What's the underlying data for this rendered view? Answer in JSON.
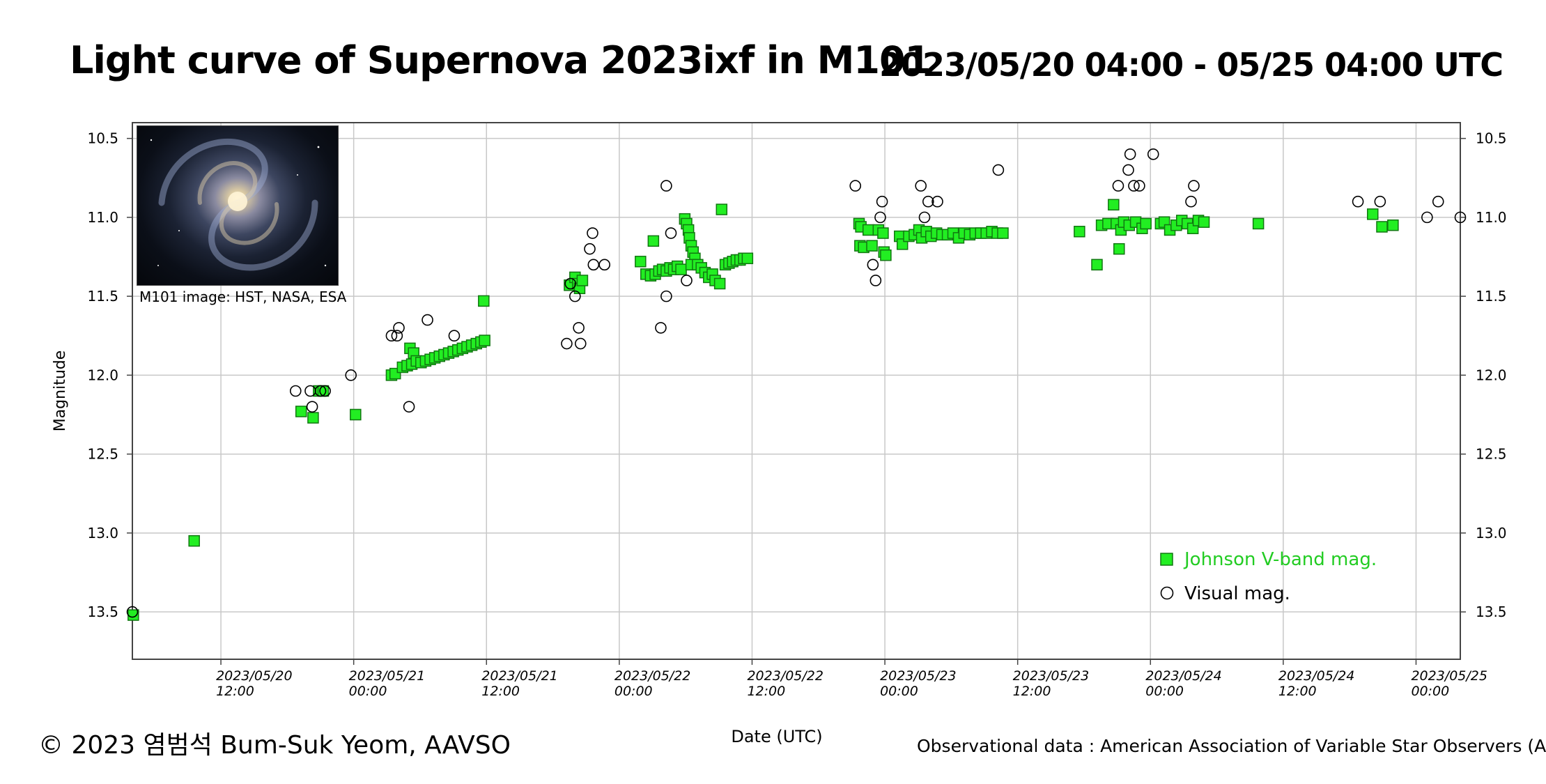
{
  "header": {
    "title": "Light curve of Supernova 2023ixf in M101",
    "range": "2023/05/20 04:00 - 05/25 04:00 UTC"
  },
  "inset": {
    "caption": "M101 image: HST, NASA, ESA"
  },
  "footer": {
    "copyright": "© 2023 염범석 Bum-Suk Yeom, AAVSO",
    "source": "Observational data : American Association of Variable Star Observers (AAVSO)"
  },
  "colors": {
    "vband": "#22ee22",
    "vband_edge": "#117711",
    "visual": "#000000",
    "legend_vband_text": "#22cc22"
  },
  "chart_data": {
    "type": "scatter",
    "xlabel": "Date (UTC)",
    "ylabel": "Magnitude",
    "xlim": [
      "2023-05-20T04:00",
      "2023-05-25T04:00"
    ],
    "ylim": [
      13.8,
      10.4
    ],
    "y_inverted": true,
    "grid": true,
    "legend_position": "bottom-right",
    "yticks": [
      "10.5",
      "11.0",
      "11.5",
      "12.0",
      "12.5",
      "13.0",
      "13.5"
    ],
    "xticks": [
      {
        "date": "2023-05-20T12:00",
        "line1": "2023/05/20",
        "line2": "12:00"
      },
      {
        "date": "2023-05-21T00:00",
        "line1": "2023/05/21",
        "line2": "00:00"
      },
      {
        "date": "2023-05-21T12:00",
        "line1": "2023/05/21",
        "line2": "12:00"
      },
      {
        "date": "2023-05-22T00:00",
        "line1": "2023/05/22",
        "line2": "00:00"
      },
      {
        "date": "2023-05-22T12:00",
        "line1": "2023/05/22",
        "line2": "12:00"
      },
      {
        "date": "2023-05-23T00:00",
        "line1": "2023/05/23",
        "line2": "00:00"
      },
      {
        "date": "2023-05-23T12:00",
        "line1": "2023/05/23",
        "line2": "12:00"
      },
      {
        "date": "2023-05-24T00:00",
        "line1": "2023/05/24",
        "line2": "00:00"
      },
      {
        "date": "2023-05-24T12:00",
        "line1": "2023/05/24",
        "line2": "12:00"
      },
      {
        "date": "2023-05-25T00:00",
        "line1": "2023/05/25",
        "line2": "00:00"
      }
    ],
    "series": [
      {
        "name": "Johnson V-band mag.",
        "marker": "square",
        "points": [
          [
            "2023-05-20T04:05",
            13.52
          ],
          [
            "2023-05-20T09:35",
            13.05
          ],
          [
            "2023-05-20T19:15",
            12.23
          ],
          [
            "2023-05-20T20:20",
            12.27
          ],
          [
            "2023-05-20T20:50",
            12.1
          ],
          [
            "2023-05-20T21:15",
            12.1
          ],
          [
            "2023-05-21T00:10",
            12.25
          ],
          [
            "2023-05-21T03:25",
            12.0
          ],
          [
            "2023-05-21T03:45",
            11.99
          ],
          [
            "2023-05-21T04:25",
            11.95
          ],
          [
            "2023-05-21T04:50",
            11.94
          ],
          [
            "2023-05-21T05:15",
            11.93
          ],
          [
            "2023-05-21T05:05",
            11.83
          ],
          [
            "2023-05-21T05:25",
            11.86
          ],
          [
            "2023-05-21T05:40",
            11.91
          ],
          [
            "2023-05-21T06:05",
            11.92
          ],
          [
            "2023-05-21T06:30",
            11.91
          ],
          [
            "2023-05-21T06:55",
            11.9
          ],
          [
            "2023-05-21T07:20",
            11.89
          ],
          [
            "2023-05-21T07:45",
            11.88
          ],
          [
            "2023-05-21T08:10",
            11.87
          ],
          [
            "2023-05-21T08:35",
            11.86
          ],
          [
            "2023-05-21T09:00",
            11.85
          ],
          [
            "2023-05-21T09:25",
            11.84
          ],
          [
            "2023-05-21T09:50",
            11.83
          ],
          [
            "2023-05-21T10:15",
            11.82
          ],
          [
            "2023-05-21T10:40",
            11.81
          ],
          [
            "2023-05-21T11:05",
            11.8
          ],
          [
            "2023-05-21T11:30",
            11.79
          ],
          [
            "2023-05-21T11:50",
            11.78
          ],
          [
            "2023-05-21T11:45",
            11.53
          ],
          [
            "2023-05-21T19:30",
            11.43
          ],
          [
            "2023-05-21T20:00",
            11.38
          ],
          [
            "2023-05-21T20:15",
            11.42
          ],
          [
            "2023-05-21T20:25",
            11.45
          ],
          [
            "2023-05-21T20:40",
            11.4
          ],
          [
            "2023-05-22T01:55",
            11.28
          ],
          [
            "2023-05-22T02:25",
            11.36
          ],
          [
            "2023-05-22T02:50",
            11.37
          ],
          [
            "2023-05-22T03:05",
            11.15
          ],
          [
            "2023-05-22T03:15",
            11.36
          ],
          [
            "2023-05-22T03:35",
            11.34
          ],
          [
            "2023-05-22T03:55",
            11.33
          ],
          [
            "2023-05-22T04:15",
            11.34
          ],
          [
            "2023-05-22T04:35",
            11.32
          ],
          [
            "2023-05-22T04:55",
            11.33
          ],
          [
            "2023-05-22T05:15",
            11.31
          ],
          [
            "2023-05-22T05:35",
            11.33
          ],
          [
            "2023-05-22T05:55",
            11.01
          ],
          [
            "2023-05-22T06:05",
            11.04
          ],
          [
            "2023-05-22T06:15",
            11.08
          ],
          [
            "2023-05-22T06:20",
            11.13
          ],
          [
            "2023-05-22T06:30",
            11.18
          ],
          [
            "2023-05-22T06:40",
            11.22
          ],
          [
            "2023-05-22T06:50",
            11.26
          ],
          [
            "2023-05-22T06:30",
            11.3
          ],
          [
            "2023-05-22T07:05",
            11.3
          ],
          [
            "2023-05-22T07:25",
            11.32
          ],
          [
            "2023-05-22T07:45",
            11.35
          ],
          [
            "2023-05-22T08:05",
            11.38
          ],
          [
            "2023-05-22T08:25",
            11.36
          ],
          [
            "2023-05-22T08:40",
            11.4
          ],
          [
            "2023-05-22T09:05",
            11.42
          ],
          [
            "2023-05-22T09:15",
            10.95
          ],
          [
            "2023-05-22T09:35",
            11.3
          ],
          [
            "2023-05-22T09:55",
            11.29
          ],
          [
            "2023-05-22T10:15",
            11.28
          ],
          [
            "2023-05-22T10:35",
            11.27
          ],
          [
            "2023-05-22T10:55",
            11.27
          ],
          [
            "2023-05-22T11:15",
            11.26
          ],
          [
            "2023-05-22T11:35",
            11.26
          ],
          [
            "2023-05-22T21:40",
            11.04
          ],
          [
            "2023-05-22T21:50",
            11.06
          ],
          [
            "2023-05-22T21:45",
            11.18
          ],
          [
            "2023-05-22T22:05",
            11.19
          ],
          [
            "2023-05-22T22:30",
            11.08
          ],
          [
            "2023-05-22T22:50",
            11.18
          ],
          [
            "2023-05-22T23:25",
            11.08
          ],
          [
            "2023-05-22T23:50",
            11.1
          ],
          [
            "2023-05-22T23:55",
            11.22
          ],
          [
            "2023-05-23T00:05",
            11.24
          ],
          [
            "2023-05-23T01:20",
            11.12
          ],
          [
            "2023-05-23T01:35",
            11.17
          ],
          [
            "2023-05-23T02:10",
            11.12
          ],
          [
            "2023-05-23T02:40",
            11.11
          ],
          [
            "2023-05-23T03:05",
            11.08
          ],
          [
            "2023-05-23T03:20",
            11.13
          ],
          [
            "2023-05-23T03:45",
            11.09
          ],
          [
            "2023-05-23T04:10",
            11.12
          ],
          [
            "2023-05-23T04:40",
            11.1
          ],
          [
            "2023-05-23T05:10",
            11.11
          ],
          [
            "2023-05-23T05:40",
            11.11
          ],
          [
            "2023-05-23T06:10",
            11.1
          ],
          [
            "2023-05-23T06:40",
            11.13
          ],
          [
            "2023-05-23T07:10",
            11.1
          ],
          [
            "2023-05-23T07:40",
            11.11
          ],
          [
            "2023-05-23T08:10",
            11.1
          ],
          [
            "2023-05-23T08:40",
            11.1
          ],
          [
            "2023-05-23T09:10",
            11.1
          ],
          [
            "2023-05-23T09:40",
            11.09
          ],
          [
            "2023-05-23T10:10",
            11.1
          ],
          [
            "2023-05-23T10:40",
            11.1
          ],
          [
            "2023-05-23T17:35",
            11.09
          ],
          [
            "2023-05-23T19:10",
            11.3
          ],
          [
            "2023-05-23T19:35",
            11.05
          ],
          [
            "2023-05-23T20:10",
            11.04
          ],
          [
            "2023-05-23T20:40",
            10.92
          ],
          [
            "2023-05-23T20:55",
            11.04
          ],
          [
            "2023-05-23T21:10",
            11.2
          ],
          [
            "2023-05-23T21:20",
            11.08
          ],
          [
            "2023-05-23T21:35",
            11.03
          ],
          [
            "2023-05-23T22:05",
            11.05
          ],
          [
            "2023-05-23T22:40",
            11.03
          ],
          [
            "2023-05-23T23:15",
            11.07
          ],
          [
            "2023-05-23T23:35",
            11.04
          ],
          [
            "2023-05-24T00:55",
            11.04
          ],
          [
            "2023-05-24T01:15",
            11.03
          ],
          [
            "2023-05-24T01:45",
            11.08
          ],
          [
            "2023-05-24T02:20",
            11.05
          ],
          [
            "2023-05-24T02:50",
            11.02
          ],
          [
            "2023-05-24T03:20",
            11.04
          ],
          [
            "2023-05-24T03:50",
            11.07
          ],
          [
            "2023-05-24T04:20",
            11.02
          ],
          [
            "2023-05-24T04:50",
            11.03
          ],
          [
            "2023-05-24T09:45",
            11.04
          ],
          [
            "2023-05-24T20:05",
            10.98
          ],
          [
            "2023-05-24T20:55",
            11.06
          ],
          [
            "2023-05-24T21:55",
            11.05
          ]
        ]
      },
      {
        "name": "Visual mag.",
        "marker": "circle",
        "points": [
          [
            "2023-05-20T04:00",
            13.5
          ],
          [
            "2023-05-20T18:45",
            12.1
          ],
          [
            "2023-05-20T20:05",
            12.1
          ],
          [
            "2023-05-20T20:15",
            12.2
          ],
          [
            "2023-05-20T21:00",
            12.1
          ],
          [
            "2023-05-20T21:25",
            12.1
          ],
          [
            "2023-05-20T23:45",
            12.0
          ],
          [
            "2023-05-21T03:25",
            11.75
          ],
          [
            "2023-05-21T03:55",
            11.75
          ],
          [
            "2023-05-21T04:05",
            11.7
          ],
          [
            "2023-05-21T05:00",
            12.2
          ],
          [
            "2023-05-21T06:40",
            11.65
          ],
          [
            "2023-05-21T09:05",
            11.75
          ],
          [
            "2023-05-21T19:15",
            11.8
          ],
          [
            "2023-05-21T19:35",
            11.42
          ],
          [
            "2023-05-21T20:00",
            11.5
          ],
          [
            "2023-05-21T20:20",
            11.7
          ],
          [
            "2023-05-21T20:30",
            11.8
          ],
          [
            "2023-05-21T21:20",
            11.2
          ],
          [
            "2023-05-21T21:40",
            11.3
          ],
          [
            "2023-05-21T21:35",
            11.1
          ],
          [
            "2023-05-21T22:40",
            11.3
          ],
          [
            "2023-05-22T03:45",
            11.7
          ],
          [
            "2023-05-22T04:15",
            11.5
          ],
          [
            "2023-05-22T04:15",
            10.8
          ],
          [
            "2023-05-22T04:40",
            11.1
          ],
          [
            "2023-05-22T06:05",
            11.4
          ],
          [
            "2023-05-22T21:20",
            10.8
          ],
          [
            "2023-05-22T22:55",
            11.3
          ],
          [
            "2023-05-22T23:35",
            11.0
          ],
          [
            "2023-05-23T23:00",
            10.8
          ],
          [
            "2023-05-22T23:10",
            11.4
          ],
          [
            "2023-05-22T23:45",
            10.9
          ],
          [
            "2023-05-23T03:15",
            10.8
          ],
          [
            "2023-05-23T03:35",
            11.0
          ],
          [
            "2023-05-23T03:55",
            10.9
          ],
          [
            "2023-05-23T04:45",
            10.9
          ],
          [
            "2023-05-23T10:15",
            10.7
          ],
          [
            "2023-05-23T21:05",
            10.8
          ],
          [
            "2023-05-23T22:00",
            10.7
          ],
          [
            "2023-05-23T22:10",
            10.6
          ],
          [
            "2023-05-23T22:30",
            10.8
          ],
          [
            "2023-05-24T00:15",
            10.6
          ],
          [
            "2023-05-24T03:55",
            10.8
          ],
          [
            "2023-05-24T03:40",
            10.9
          ],
          [
            "2023-05-24T18:45",
            10.9
          ],
          [
            "2023-05-24T20:45",
            10.9
          ],
          [
            "2023-05-25T01:00",
            11.0
          ],
          [
            "2023-05-25T02:00",
            10.9
          ],
          [
            "2023-05-25T04:00",
            11.0
          ]
        ]
      }
    ]
  }
}
